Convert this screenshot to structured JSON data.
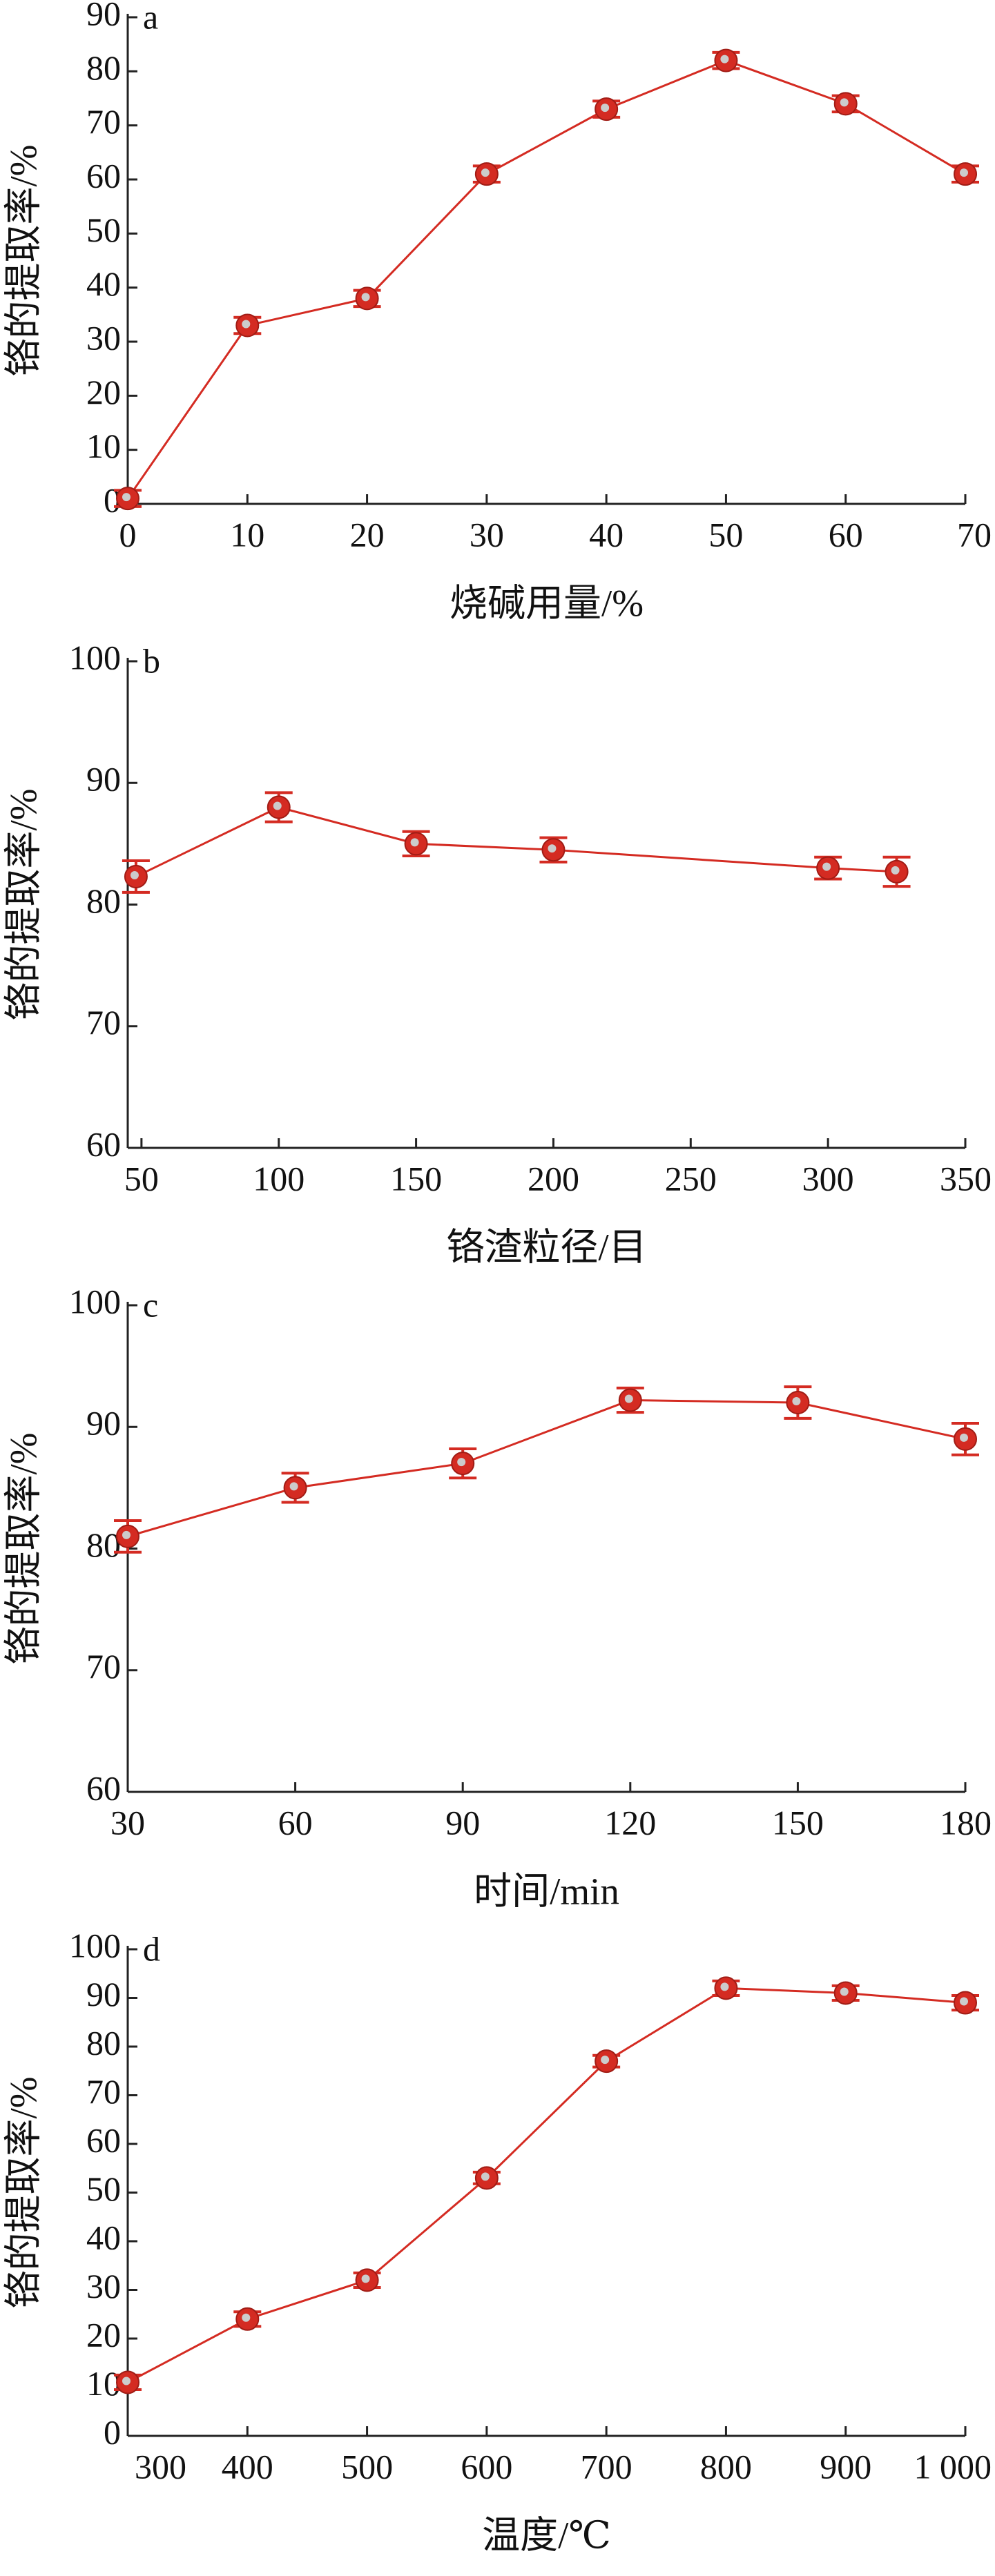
{
  "chart_data": [
    {
      "type": "line",
      "label": "a",
      "x_label": "烧碱用量/%",
      "y_label": "铬的提取率/%",
      "x": [
        0,
        10,
        20,
        30,
        40,
        50,
        60,
        70
      ],
      "series": [
        {
          "color": "#d42b22",
          "values": [
            1,
            33,
            38,
            61,
            73,
            82,
            74,
            61
          ],
          "errors": [
            1.5,
            1.5,
            1.5,
            1.5,
            1.5,
            1.5,
            1.5,
            1.5
          ]
        }
      ],
      "xlim": [
        0,
        70
      ],
      "xticks": [
        0,
        10,
        20,
        30,
        40,
        50,
        60,
        70
      ],
      "ylim": [
        0,
        90
      ],
      "yticks": [
        0,
        10,
        20,
        30,
        40,
        50,
        60,
        70,
        80,
        90
      ]
    },
    {
      "type": "line",
      "label": "b",
      "x_label": "铬渣粒径/目",
      "y_label": "铬的提取率/%",
      "x": [
        48,
        100,
        150,
        200,
        300,
        325
      ],
      "series": [
        {
          "color": "#d42b22",
          "values": [
            82.3,
            88,
            85,
            84.5,
            83,
            82.7
          ],
          "errors": [
            1.3,
            1.2,
            1,
            1,
            0.9,
            1.2
          ]
        }
      ],
      "xlim": [
        45,
        350
      ],
      "xticks": [
        50,
        100,
        150,
        200,
        250,
        300,
        350
      ],
      "ylim": [
        60,
        100
      ],
      "yticks": [
        60,
        70,
        80,
        90,
        100
      ]
    },
    {
      "type": "line",
      "label": "c",
      "x_label": "时间/min",
      "y_label": "铬的提取率/%",
      "x": [
        30,
        60,
        90,
        120,
        150,
        180
      ],
      "series": [
        {
          "color": "#d42b22",
          "values": [
            81,
            85,
            87,
            92.2,
            92,
            89
          ],
          "errors": [
            1.3,
            1.2,
            1.2,
            1,
            1.3,
            1.3
          ]
        }
      ],
      "xlim": [
        30,
        180
      ],
      "xticks": [
        30,
        60,
        90,
        120,
        150,
        180
      ],
      "ylim": [
        60,
        100
      ],
      "yticks": [
        60,
        70,
        80,
        90,
        100
      ]
    },
    {
      "type": "line",
      "label": "d",
      "x_label": "温度/℃",
      "y_label": "铬的提取率/%",
      "x": [
        300,
        400,
        500,
        600,
        700,
        800,
        900,
        1000
      ],
      "series": [
        {
          "color": "#d42b22",
          "values": [
            11,
            24,
            32,
            53,
            77,
            92,
            91,
            89
          ],
          "errors": [
            1.5,
            1.5,
            1.5,
            1.2,
            1.2,
            1.5,
            1.5,
            1.5
          ]
        }
      ],
      "xlim": [
        300,
        1000
      ],
      "xticks": [
        300,
        400,
        500,
        600,
        700,
        800,
        900,
        {
          "value": 1000,
          "label": "1 000"
        }
      ],
      "ylim": [
        0,
        100
      ],
      "yticks": [
        0,
        10,
        20,
        30,
        40,
        50,
        60,
        70,
        80,
        90,
        100
      ]
    }
  ]
}
